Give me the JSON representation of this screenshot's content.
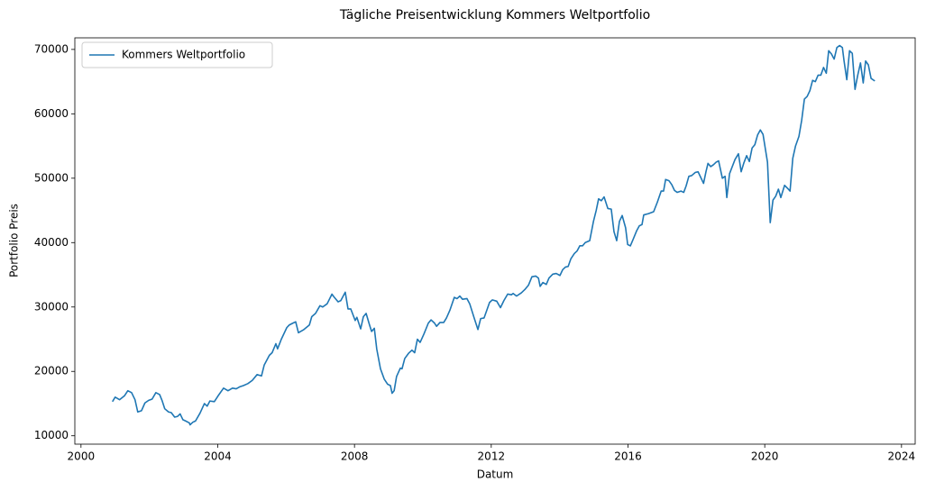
{
  "chart_data": {
    "type": "line",
    "title": "Tägliche Preisentwicklung Kommers Weltportfolio",
    "x_label": "Datum",
    "y_label": "Portfolio Preis",
    "legend": "upper left",
    "grid": false,
    "xlim": [
      1999.82,
      2024.4
    ],
    "xticks": [
      2000,
      2004,
      2008,
      2012,
      2016,
      2020,
      2024
    ],
    "ylim": [
      8700,
      71800
    ],
    "yticks": [
      10000,
      20000,
      30000,
      40000,
      50000,
      60000,
      70000
    ],
    "x": [
      2000.92,
      2001.0,
      2001.13,
      2001.27,
      2001.37,
      2001.48,
      2001.58,
      2001.66,
      2001.77,
      2001.87,
      2001.98,
      2002.08,
      2002.19,
      2002.3,
      2002.37,
      2002.45,
      2002.56,
      2002.64,
      2002.74,
      2002.82,
      2002.9,
      2002.98,
      2003.06,
      2003.17,
      2003.19,
      2003.27,
      2003.35,
      2003.48,
      2003.61,
      2003.69,
      2003.77,
      2003.9,
      2004.01,
      2004.17,
      2004.3,
      2004.43,
      2004.54,
      2004.64,
      2004.75,
      2004.88,
      2005.01,
      2005.15,
      2005.28,
      2005.36,
      2005.51,
      2005.59,
      2005.7,
      2005.75,
      2005.86,
      2006.02,
      2006.09,
      2006.2,
      2006.28,
      2006.36,
      2006.52,
      2006.68,
      2006.75,
      2006.86,
      2006.99,
      2007.07,
      2007.2,
      2007.34,
      2007.41,
      2007.52,
      2007.6,
      2007.73,
      2007.81,
      2007.89,
      2008.02,
      2008.07,
      2008.18,
      2008.26,
      2008.34,
      2008.44,
      2008.5,
      2008.58,
      2008.65,
      2008.76,
      2008.87,
      2008.97,
      2009.05,
      2009.1,
      2009.16,
      2009.23,
      2009.34,
      2009.39,
      2009.47,
      2009.58,
      2009.68,
      2009.76,
      2009.84,
      2009.92,
      2010.03,
      2010.16,
      2010.24,
      2010.34,
      2010.4,
      2010.5,
      2010.61,
      2010.69,
      2010.79,
      2010.92,
      2011.0,
      2011.08,
      2011.16,
      2011.29,
      2011.37,
      2011.5,
      2011.61,
      2011.69,
      2011.79,
      2011.87,
      2011.95,
      2012.03,
      2012.16,
      2012.27,
      2012.37,
      2012.48,
      2012.59,
      2012.64,
      2012.74,
      2012.88,
      2012.98,
      2013.09,
      2013.19,
      2013.3,
      2013.38,
      2013.43,
      2013.51,
      2013.61,
      2013.69,
      2013.8,
      2013.9,
      2014.01,
      2014.09,
      2014.17,
      2014.25,
      2014.33,
      2014.43,
      2014.51,
      2014.59,
      2014.67,
      2014.75,
      2014.88,
      2014.99,
      2015.07,
      2015.14,
      2015.22,
      2015.3,
      2015.41,
      2015.51,
      2015.59,
      2015.67,
      2015.75,
      2015.83,
      2015.93,
      2015.99,
      2016.07,
      2016.15,
      2016.25,
      2016.33,
      2016.41,
      2016.46,
      2016.6,
      2016.75,
      2016.86,
      2016.97,
      2017.04,
      2017.1,
      2017.2,
      2017.28,
      2017.36,
      2017.44,
      2017.55,
      2017.63,
      2017.7,
      2017.78,
      2017.86,
      2017.97,
      2018.05,
      2018.13,
      2018.21,
      2018.28,
      2018.34,
      2018.42,
      2018.5,
      2018.58,
      2018.65,
      2018.76,
      2018.84,
      2018.89,
      2018.97,
      2019.05,
      2019.13,
      2019.23,
      2019.31,
      2019.39,
      2019.47,
      2019.55,
      2019.63,
      2019.71,
      2019.79,
      2019.87,
      2019.95,
      2020.08,
      2020.16,
      2020.24,
      2020.32,
      2020.4,
      2020.47,
      2020.58,
      2020.69,
      2020.74,
      2020.82,
      2020.9,
      2021.0,
      2021.08,
      2021.16,
      2021.24,
      2021.32,
      2021.4,
      2021.48,
      2021.56,
      2021.64,
      2021.72,
      2021.8,
      2021.87,
      2021.95,
      2022.03,
      2022.11,
      2022.19,
      2022.27,
      2022.32,
      2022.4,
      2022.48,
      2022.56,
      2022.64,
      2022.72,
      2022.8,
      2022.88,
      2022.95,
      2023.03,
      2023.11,
      2023.22
    ],
    "series": [
      {
        "name": "Kommers Weltportfolio",
        "color": "#1f77b4",
        "values": [
          15300,
          16000,
          15600,
          16200,
          17000,
          16700,
          15600,
          13700,
          13900,
          15100,
          15500,
          15700,
          16700,
          16400,
          15500,
          14200,
          13700,
          13600,
          12900,
          13000,
          13400,
          12500,
          12300,
          12000,
          11700,
          12100,
          12300,
          13500,
          15000,
          14600,
          15400,
          15300,
          16200,
          17400,
          17000,
          17400,
          17300,
          17600,
          17800,
          18100,
          18600,
          19500,
          19300,
          21000,
          22500,
          22900,
          24300,
          23500,
          25000,
          26800,
          27200,
          27500,
          27700,
          26000,
          26500,
          27200,
          28500,
          29000,
          30200,
          30000,
          30500,
          32000,
          31500,
          30800,
          31000,
          32300,
          29700,
          29700,
          27900,
          28400,
          26600,
          28500,
          29000,
          27200,
          26200,
          26700,
          23500,
          20400,
          18800,
          18000,
          17800,
          16600,
          17000,
          19200,
          20500,
          20400,
          22000,
          22800,
          23300,
          22900,
          25000,
          24500,
          25800,
          27500,
          28000,
          27500,
          27000,
          27600,
          27600,
          28300,
          29500,
          31500,
          31300,
          31700,
          31200,
          31300,
          30500,
          28300,
          26500,
          28200,
          28300,
          29500,
          30700,
          31100,
          30900,
          29900,
          31000,
          32000,
          31900,
          32100,
          31700,
          32200,
          32700,
          33400,
          34700,
          34800,
          34500,
          33200,
          33800,
          33500,
          34500,
          35100,
          35200,
          34900,
          35800,
          36200,
          36300,
          37500,
          38300,
          38700,
          39500,
          39500,
          40000,
          40300,
          43300,
          45000,
          46800,
          46500,
          47100,
          45300,
          45200,
          41700,
          40300,
          43300,
          44200,
          42300,
          39700,
          39500,
          40500,
          41800,
          42600,
          42800,
          44300,
          44500,
          44800,
          46300,
          48000,
          48000,
          49800,
          49600,
          49000,
          48100,
          47800,
          48000,
          47800,
          48800,
          50300,
          50400,
          50900,
          51000,
          50100,
          49200,
          51000,
          52300,
          51800,
          52100,
          52500,
          52700,
          50000,
          50300,
          47000,
          50700,
          51800,
          52900,
          53800,
          51000,
          52400,
          53500,
          52600,
          54700,
          55200,
          56700,
          57500,
          56800,
          52500,
          43100,
          46600,
          47200,
          48300,
          47000,
          48900,
          48300,
          48000,
          53100,
          55000,
          56500,
          59000,
          62300,
          62700,
          63600,
          65200,
          65000,
          66000,
          66000,
          67200,
          66300,
          69800,
          69300,
          68500,
          70300,
          70600,
          70300,
          68200,
          65300,
          69800,
          69400,
          63800,
          66000,
          67900,
          64800,
          68200,
          67600,
          65500,
          65100
        ]
      }
    ]
  }
}
